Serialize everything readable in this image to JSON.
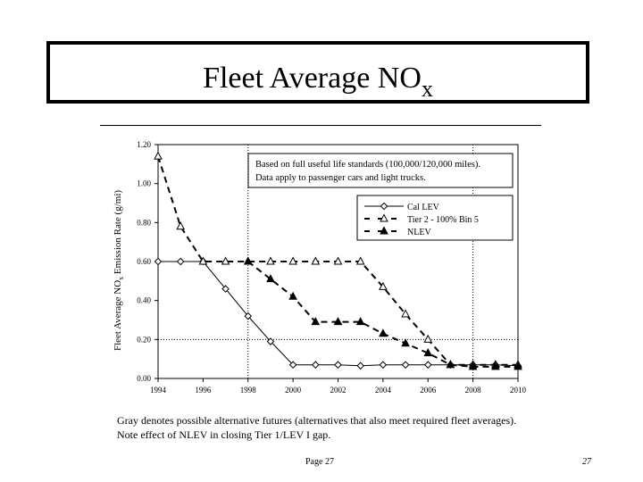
{
  "slide": {
    "title_main": "Fleet Average NO",
    "title_sub": "x",
    "caption_line1": "Gray denotes possible alternative futures (alternatives that also meet required fleet averages).",
    "caption_line2": "Note effect of NLEV in closing Tier 1/LEV I gap.",
    "footer_page": "Page 27",
    "slide_number": "27"
  },
  "chart_data": {
    "type": "line",
    "ylabel_main": "Fleet Average NO",
    "ylabel_sub": "x",
    "ylabel_rest": " Emission Rate (g/mi)",
    "xlabel": "",
    "ylim": [
      0,
      1.2
    ],
    "xlim": [
      1994,
      2010
    ],
    "x_ticks": [
      "1994",
      "1996",
      "1998",
      "2000",
      "2002",
      "2004",
      "2006",
      "2008",
      "2010"
    ],
    "y_ticks": [
      "0.00",
      "0.20",
      "0.40",
      "0.60",
      "0.80",
      "1.00",
      "1.20"
    ],
    "annotation_line1": "Based on full useful life standards (100,000/120,000 miles).",
    "annotation_line2": "Data apply to passenger cars and light trucks.",
    "legend_position": "top-right",
    "series": [
      {
        "name": "Cal LEV",
        "marker": "diamond-open",
        "style": "solid",
        "x": [
          1994,
          1995,
          1996,
          1997,
          1998,
          1999,
          2000,
          2001,
          2002,
          2003,
          2004,
          2005,
          2006,
          2007,
          2008,
          2009,
          2010
        ],
        "values": [
          0.6,
          0.6,
          0.6,
          0.46,
          0.32,
          0.19,
          0.07,
          0.07,
          0.07,
          0.065,
          0.07,
          0.07,
          0.07,
          0.07,
          0.07,
          0.07,
          0.065
        ]
      },
      {
        "name": "Tier 2 - 100% Bin 5",
        "marker": "triangle-open",
        "style": "dashed",
        "x": [
          1994,
          1995,
          1996,
          1997,
          1998,
          1999,
          2000,
          2001,
          2002,
          2003,
          2004,
          2005,
          2006,
          2007,
          2008,
          2009,
          2010
        ],
        "values": [
          1.14,
          0.78,
          0.6,
          0.6,
          0.6,
          0.6,
          0.6,
          0.6,
          0.6,
          0.6,
          0.47,
          0.33,
          0.2,
          0.07,
          0.07,
          0.07,
          0.07
        ]
      },
      {
        "name": "NLEV",
        "marker": "triangle-filled",
        "style": "dashed",
        "x": [
          1998,
          1999,
          2000,
          2001,
          2002,
          2003,
          2004,
          2005,
          2006,
          2007,
          2008,
          2009,
          2010
        ],
        "values": [
          0.6,
          0.51,
          0.42,
          0.29,
          0.29,
          0.29,
          0.23,
          0.18,
          0.13,
          0.07,
          0.06,
          0.06,
          0.06
        ]
      }
    ]
  }
}
